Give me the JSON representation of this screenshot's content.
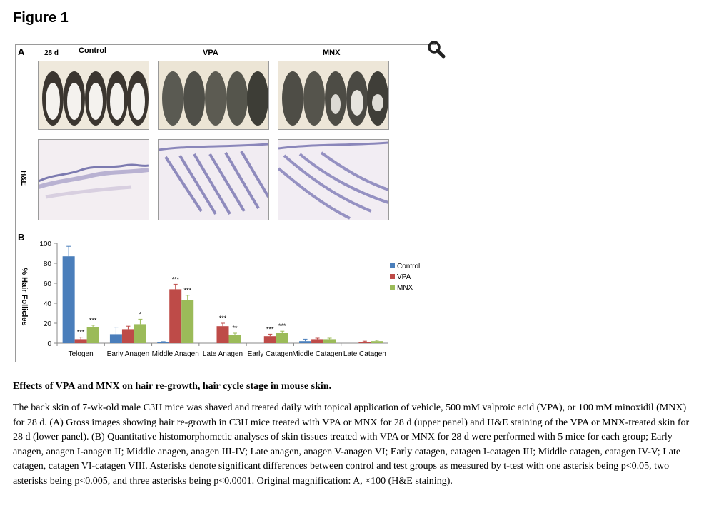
{
  "figure": {
    "title": "Figure 1",
    "panel_a_label": "A",
    "panel_b_label": "B",
    "day_label": "28  d",
    "groups": [
      "Control",
      "VPA",
      "MNX"
    ],
    "stain_label": "H&E",
    "zoom_icon": "magnifier-icon"
  },
  "colors": {
    "control": "#4a7ebb",
    "vpa": "#be4b48",
    "mnx": "#9bbb59"
  },
  "chart_data": {
    "type": "bar",
    "ylabel": "% Hair Follicles",
    "xlabel": "",
    "ylim": [
      0,
      100
    ],
    "yticks": [
      0,
      20,
      40,
      60,
      80,
      100
    ],
    "legend_position": "right",
    "categories": [
      "Telogen",
      "Early Anagen",
      "Middle Anagen",
      "Late Anagen",
      "Early Catagen",
      "Middle Catagen",
      "Late Catagen"
    ],
    "series": [
      {
        "name": "Control",
        "color": "#4a7ebb",
        "values": [
          87,
          9,
          1,
          0,
          0,
          2,
          0
        ],
        "errors": [
          10,
          7,
          0.5,
          0,
          0,
          2,
          0
        ],
        "annotations": [
          "",
          "",
          "",
          "",
          "",
          "",
          ""
        ]
      },
      {
        "name": "VPA",
        "color": "#be4b48",
        "values": [
          4,
          14,
          54,
          17,
          7,
          4,
          1
        ],
        "errors": [
          2,
          3,
          5,
          3,
          2,
          1,
          1
        ],
        "annotations": [
          "***",
          "",
          "***",
          "***",
          "***",
          "",
          ""
        ]
      },
      {
        "name": "MNX",
        "color": "#9bbb59",
        "values": [
          16,
          19,
          43,
          8,
          10,
          4,
          2
        ],
        "errors": [
          2,
          5,
          5,
          2,
          2,
          1,
          1
        ],
        "annotations": [
          "***",
          "*",
          "***",
          "**",
          "***",
          "",
          ""
        ]
      }
    ]
  },
  "caption": {
    "title": "Effects of VPA and MNX on hair re-growth, hair cycle stage in mouse skin.",
    "body": "The back skin of 7-wk-old male C3H mice was shaved and treated daily with topical application of vehicle, 500 mM valproic acid (VPA), or 100 mM minoxidil (MNX) for 28 d. (A) Gross images showing hair re-growth in C3H mice treated with VPA or MNX for 28 d (upper panel) and H&E staining of the VPA or MNX-treated skin for 28 d (lower panel). (B) Quantitative histomorphometic analyses of skin tissues treated with VPA or MNX for 28 d were performed with 5 mice for each group; Early anagen, anagen I-anagen II; Middle anagen, anagen III-IV; Late anagen, anagen V-anagen VI; Early catagen, catagen I-catagen III; Middle catagen, catagen IV-V; Late catagen, catagen VI-catagen VIII. Asterisks denote significant differences between control and test groups as measured by t-test with one asterisk being p<0.05, two asterisks being p<0.005, and three asterisks being p<0.0001. Original magnification: A, ×100 (H&E staining)."
  }
}
